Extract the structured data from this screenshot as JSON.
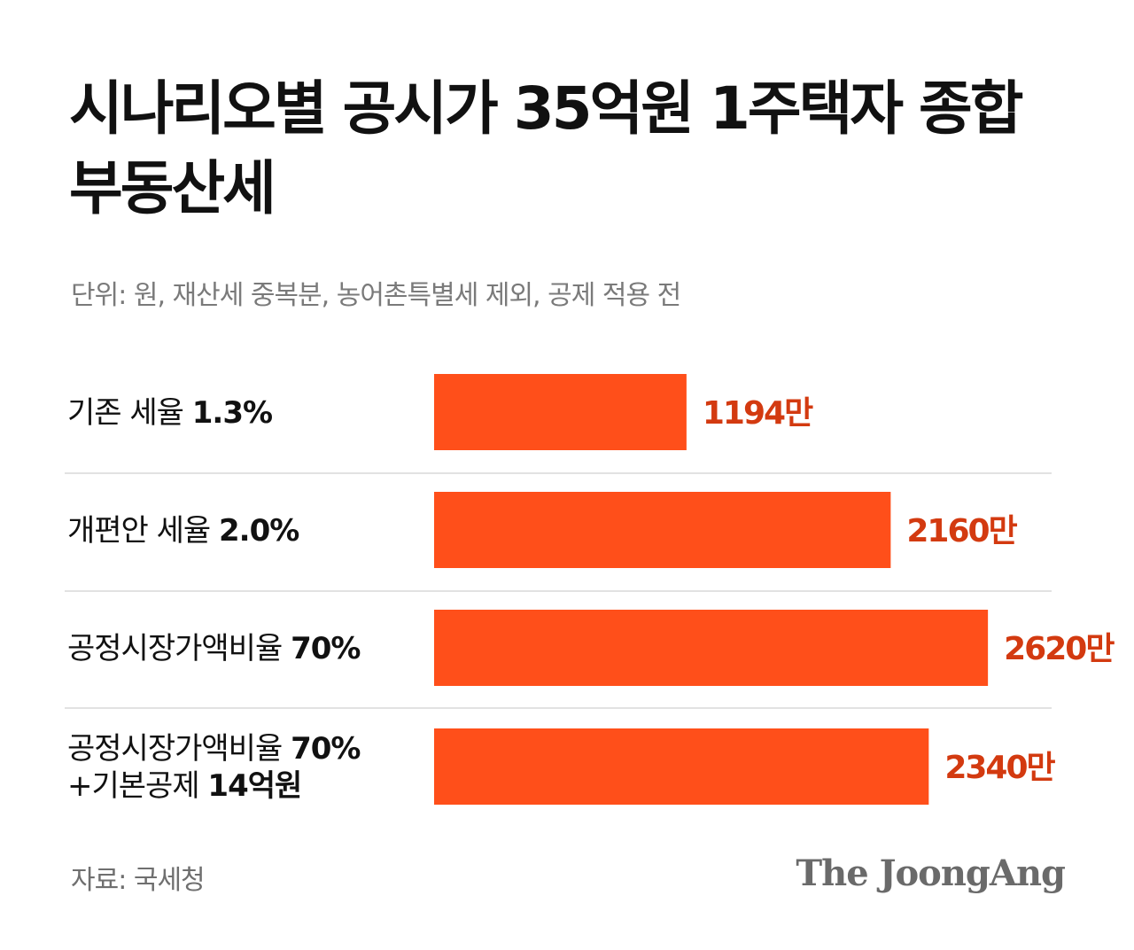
{
  "header": {
    "title": "시나리오별 공시가 35억원 1주택자 종합부동산세",
    "subtitle": "단위: 원, 재산세 중복분, 농어촌특별세 제외, 공제 적용 전"
  },
  "footer": {
    "source": "자료: 국세청",
    "brand": "The JoongAng"
  },
  "colors": {
    "bar": "#ff4f1a",
    "value_text": "#d33a10",
    "divider": "#d9d9d9"
  },
  "chart_data": {
    "type": "bar",
    "orientation": "horizontal",
    "title": "시나리오별 공시가 35억원 1주택자 종합부동산세",
    "subtitle": "단위: 원, 재산세 중복분, 농어촌특별세 제외, 공제 적용 전",
    "categories": [
      {
        "lines": [
          [
            {
              "text": "기존 세율 ",
              "bold": false
            },
            {
              "text": "1.3%",
              "bold": true
            }
          ]
        ]
      },
      {
        "lines": [
          [
            {
              "text": "개편안 세율 ",
              "bold": false
            },
            {
              "text": "2.0%",
              "bold": true
            }
          ]
        ]
      },
      {
        "lines": [
          [
            {
              "text": "공정시장가액비율 ",
              "bold": false
            },
            {
              "text": "70%",
              "bold": true
            }
          ]
        ]
      },
      {
        "lines": [
          [
            {
              "text": "공정시장가액비율 ",
              "bold": false
            },
            {
              "text": "70%",
              "bold": true
            }
          ],
          [
            {
              "text": "+기본공제 ",
              "bold": false
            },
            {
              "text": "14억원",
              "bold": true
            }
          ]
        ]
      }
    ],
    "values": [
      1194,
      2160,
      2620,
      2340
    ],
    "value_labels": [
      "1194만",
      "2160만",
      "2620만",
      "2340만"
    ],
    "xlim": [
      0,
      3250
    ],
    "grid": false,
    "legend": "none"
  }
}
